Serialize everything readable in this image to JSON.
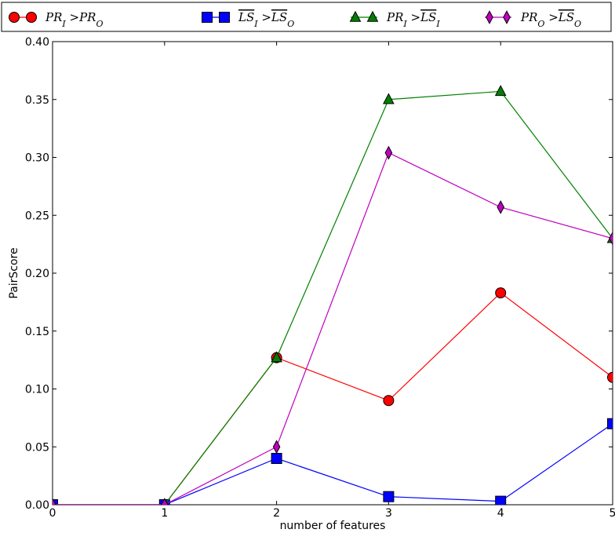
{
  "chart_data": {
    "type": "line",
    "xlabel": "number of features",
    "ylabel": "PairScore",
    "xlim": [
      0,
      5
    ],
    "ylim": [
      0,
      0.4
    ],
    "xticks": [
      "0",
      "1",
      "2",
      "3",
      "4",
      "5"
    ],
    "yticks": [
      "0.00",
      "0.05",
      "0.10",
      "0.15",
      "0.20",
      "0.25",
      "0.30",
      "0.35",
      "0.40"
    ],
    "grid": false,
    "legend_position": "top",
    "x": [
      0,
      1,
      2,
      3,
      4,
      5
    ],
    "series": [
      {
        "name": "PR_I > PR_O",
        "color": "#ff0000",
        "marker": "circle",
        "values": [
          0.0,
          0.0,
          0.127,
          0.09,
          0.183,
          0.11
        ]
      },
      {
        "name": "~LS_I > ~LS_O",
        "color": "#0000ff",
        "marker": "square",
        "values": [
          0.0,
          0.0,
          0.04,
          0.007,
          0.003,
          0.07
        ]
      },
      {
        "name": "PR_I > ~LS_I",
        "color": "#008000",
        "marker": "triangle",
        "values": [
          0.0,
          0.0,
          0.127,
          0.35,
          0.357,
          0.23
        ]
      },
      {
        "name": "PR_O > ~LS_O",
        "color": "#bf00bf",
        "marker": "diamond",
        "values": [
          0.0,
          0.0,
          0.05,
          0.304,
          0.257,
          0.23
        ]
      }
    ]
  }
}
